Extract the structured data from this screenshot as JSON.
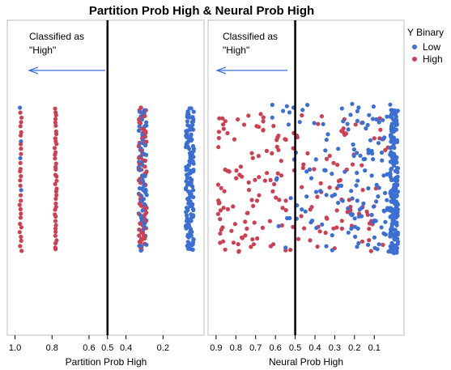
{
  "chart_data": {
    "type": "scatter",
    "title": "Partition Prob High & Neural Prob High",
    "colors": {
      "Low": "#3b6fd4",
      "High": "#cf3f52",
      "arrow": "#3b6fd4"
    },
    "legend": {
      "title": "Y Binary",
      "placement": "right",
      "entries": [
        {
          "name": "Low",
          "color": "#3b6fd4"
        },
        {
          "name": "High",
          "color": "#cf3f52"
        }
      ]
    },
    "y_jitter": true,
    "panels": [
      {
        "xlabel": "Partition Prob High",
        "xlim": [
          1.02,
          0.0
        ],
        "x_reversed": true,
        "ticks": [
          "1.0",
          "0.8",
          "0.6",
          "0.5",
          "0.4",
          "0.2"
        ],
        "tick_values": [
          1.0,
          0.8,
          0.6,
          0.5,
          0.4,
          0.2
        ],
        "threshold": 0.5,
        "annotation": [
          "Classified as",
          "\"High\""
        ],
        "groups": [
          {
            "x": 0.97,
            "High": 28,
            "Low": 4
          },
          {
            "x": 0.78,
            "High": 40,
            "Low": 0
          },
          {
            "x": 0.31,
            "High": 75,
            "Low": 80
          },
          {
            "x": 0.055,
            "High": 0,
            "Low": 140
          }
        ]
      },
      {
        "xlabel": "Neural Prob High",
        "xlim": [
          0.92,
          -0.03
        ],
        "x_reversed": true,
        "ticks": [
          "0.9",
          "0.8",
          "0.7",
          "0.6",
          "0.5",
          "0.4",
          "0.3",
          "0.2",
          "0.1"
        ],
        "tick_values": [
          0.9,
          0.8,
          0.7,
          0.6,
          0.5,
          0.4,
          0.3,
          0.2,
          0.1
        ],
        "threshold": 0.5,
        "annotation": [
          "Classified as",
          "\"High\""
        ],
        "point_counts": {
          "High": 190,
          "Low": 330
        }
      }
    ]
  }
}
